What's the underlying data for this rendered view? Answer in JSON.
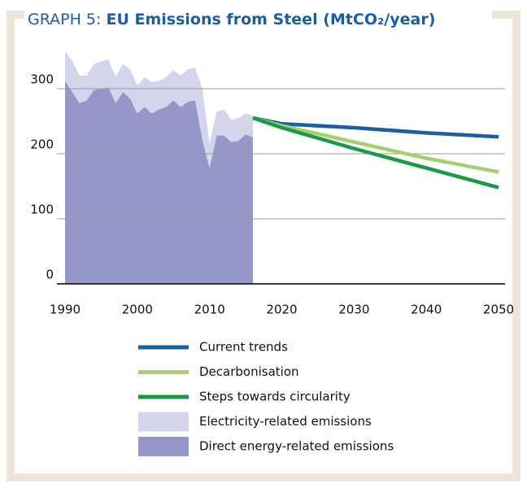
{
  "chart_data": {
    "type": "area_line",
    "title_label": "GRAPH 5:",
    "title": "EU Emissions from Steel (MtCO₂/year)",
    "xlim": [
      1990,
      2050
    ],
    "xticks": [
      1990,
      2000,
      2010,
      2020,
      2030,
      2040,
      2050
    ],
    "ylim": [
      0,
      360
    ],
    "yticks": [
      0,
      100,
      200,
      300
    ],
    "grid": true,
    "areas": [
      {
        "name": "Direct energy-related emissions",
        "color": "#9497c8",
        "x": [
          1990,
          1991,
          1992,
          1993,
          1994,
          1995,
          1996,
          1997,
          1998,
          1999,
          2000,
          2001,
          2002,
          2003,
          2004,
          2005,
          2006,
          2007,
          2008,
          2009,
          2010,
          2011,
          2012,
          2013,
          2014,
          2015,
          2016
        ],
        "values": [
          312,
          295,
          278,
          282,
          298,
          300,
          302,
          278,
          295,
          285,
          262,
          272,
          262,
          268,
          272,
          282,
          272,
          280,
          282,
          222,
          178,
          228,
          228,
          218,
          220,
          230,
          225
        ]
      },
      {
        "name": "Electricity-related emissions",
        "color": "#d4d5ec",
        "x": [
          1990,
          1991,
          1992,
          1993,
          1994,
          1995,
          1996,
          1997,
          1998,
          1999,
          2000,
          2001,
          2002,
          2003,
          2004,
          2005,
          2006,
          2007,
          2008,
          2009,
          2010,
          2011,
          2012,
          2013,
          2014,
          2015,
          2016
        ],
        "values": [
          46,
          47,
          42,
          38,
          40,
          42,
          43,
          40,
          43,
          45,
          43,
          46,
          48,
          44,
          46,
          46,
          48,
          50,
          50,
          78,
          37,
          37,
          40,
          34,
          35,
          32,
          33
        ]
      }
    ],
    "series": [
      {
        "name": "Current trends",
        "color": "#1a5fa3",
        "x": [
          2016,
          2020,
          2030,
          2040,
          2050
        ],
        "values": [
          255,
          246,
          240,
          232,
          226
        ]
      },
      {
        "name": "Decarbonisation",
        "color": "#a6cf6e",
        "x": [
          2016,
          2020,
          2030,
          2040,
          2050
        ],
        "values": [
          255,
          243,
          218,
          193,
          172
        ]
      },
      {
        "name": "Steps towards circularity",
        "color": "#1a9a48",
        "x": [
          2016,
          2020,
          2030,
          2040,
          2050
        ],
        "values": [
          255,
          240,
          208,
          178,
          148
        ]
      }
    ]
  }
}
